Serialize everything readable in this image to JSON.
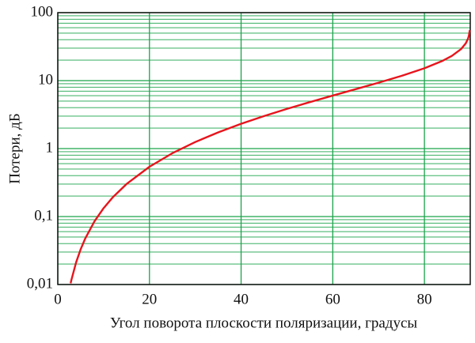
{
  "chart_data": {
    "type": "line",
    "x_label": "Угол поворота плоскости поляризации, градусы",
    "y_label": "Потери,  дБ",
    "x": [
      2.8,
      3,
      4,
      5,
      6,
      8,
      10,
      12,
      15,
      20,
      25,
      30,
      35,
      40,
      45,
      50,
      55,
      60,
      65,
      70,
      75,
      80,
      84,
      86,
      88,
      89,
      89.5,
      89.7,
      89.9
    ],
    "series": [
      {
        "color": "#e8141c",
        "values": [
          0.0104,
          0.0119,
          0.0212,
          0.0331,
          0.0477,
          0.0849,
          0.133,
          0.192,
          0.301,
          0.54,
          0.855,
          1.249,
          1.733,
          2.315,
          3.01,
          3.838,
          4.828,
          6.021,
          7.482,
          9.32,
          11.74,
          15.21,
          19.62,
          23.13,
          29.14,
          35.16,
          41.18,
          45.6,
          55.2
        ]
      }
    ],
    "xlim": [
      0,
      90
    ],
    "xticks": [
      0,
      20,
      40,
      60,
      80
    ],
    "ylim": [
      0.01,
      100
    ],
    "yticks": [
      {
        "value": 0.01,
        "label": "0,01"
      },
      {
        "value": 0.1,
        "label": "0,1"
      },
      1,
      10,
      100
    ],
    "log_y": true,
    "grid": true,
    "minor_grid": true,
    "grid_color": "#1aa34a"
  }
}
